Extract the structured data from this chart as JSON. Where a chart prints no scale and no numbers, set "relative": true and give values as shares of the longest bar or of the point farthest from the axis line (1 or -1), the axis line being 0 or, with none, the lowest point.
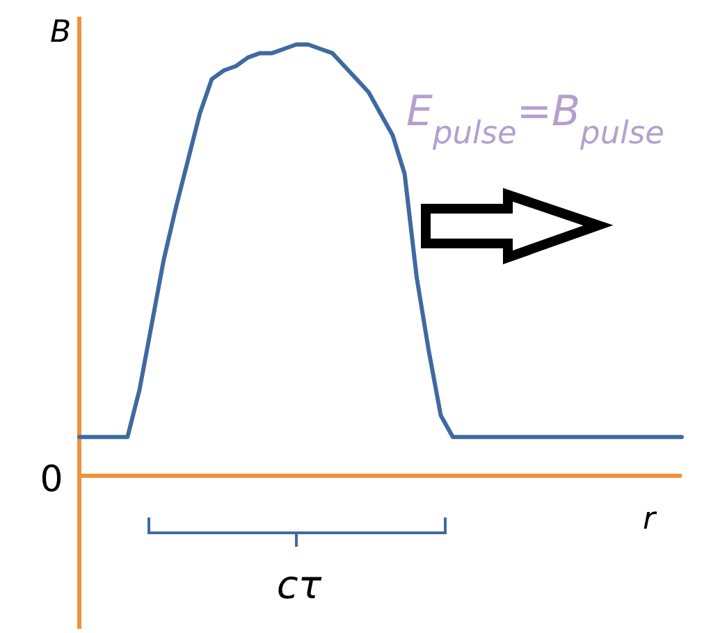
{
  "chart_data": {
    "type": "line",
    "relative": true,
    "xlabel": "r",
    "ylabel": "B",
    "categories": [
      null,
      null,
      null,
      null,
      null,
      null,
      null,
      null,
      null,
      null,
      null,
      null,
      null,
      null,
      null,
      null,
      null,
      null,
      null,
      null,
      null,
      null,
      null,
      null,
      null,
      null,
      null,
      null,
      null,
      null,
      null,
      null,
      null,
      null,
      null,
      null,
      null,
      null,
      null,
      null,
      null,
      null,
      null,
      null,
      null,
      null,
      null,
      null,
      null,
      null,
      null
    ],
    "series": [
      {
        "color": "#3f6aa0",
        "values": [
          0.09,
          0.09,
          0.09,
          0.09,
          0.09,
          0.2,
          0.35,
          0.5,
          0.62,
          0.73,
          0.84,
          0.92,
          0.94,
          0.95,
          0.97,
          0.98,
          0.98,
          0.99,
          1,
          1,
          0.99,
          0.98,
          0.95,
          0.92,
          0.89,
          0.84,
          0.79,
          0.7,
          0.46,
          0.29,
          0.14,
          0.09,
          0.09,
          0.09,
          0.09,
          0.09,
          0.09,
          0.09,
          0.09,
          0.09,
          0.09,
          0.09,
          0.09,
          0.09,
          0.09,
          0.09,
          0.09,
          0.09,
          0.09,
          0.09,
          0.09
        ]
      }
    ],
    "annotations": [
      "0",
      "E$_{pulse}$=B$_{pulse}$",
      "cτ"
    ]
  }
}
